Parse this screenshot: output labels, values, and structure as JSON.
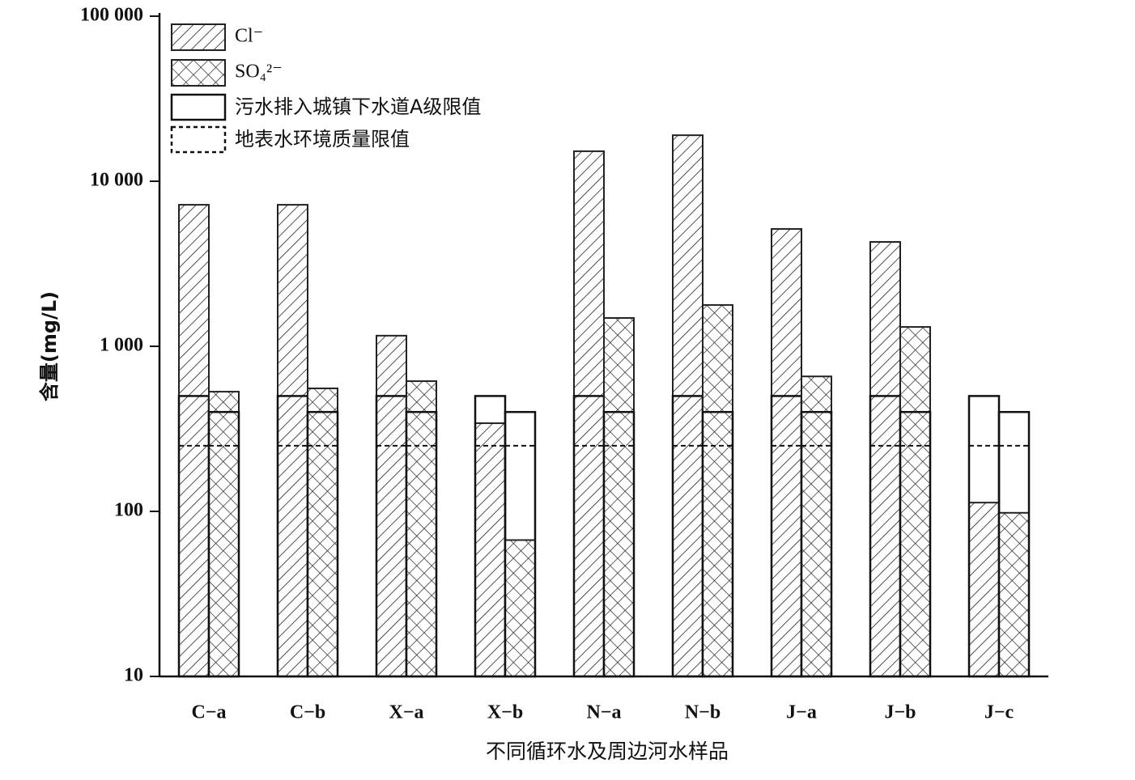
{
  "chart_data": {
    "type": "bar",
    "log_scale": true,
    "x_label": "不同循环水及周边河水样品",
    "y_label": "含量(mg/L)",
    "categories": [
      "C−a",
      "C−b",
      "X−a",
      "X−b",
      "N−a",
      "N−b",
      "J−a",
      "J−b",
      "J−c"
    ],
    "series": [
      {
        "name": "Cl⁻",
        "color": "#222222",
        "hatch": "diagonal",
        "values": [
          7200,
          7200,
          1160,
          342,
          15200,
          19000,
          5140,
          4290,
          113
        ]
      },
      {
        "name": "SO₄²⁻",
        "color": "#222222",
        "hatch": "cross",
        "values": [
          531,
          556,
          615,
          67,
          1485,
          1780,
          657,
          1310,
          98
        ]
      }
    ],
    "reference_lines": [
      {
        "name": "污水排入城镇下水道A级限值",
        "style": "solid",
        "values": [
          500,
          400
        ]
      },
      {
        "name": "地表水环境质量限值",
        "style": "dashed",
        "values": [
          250,
          250
        ]
      }
    ],
    "ylim": [
      10,
      100000
    ],
    "yticks": [
      {
        "value": 10,
        "label": "10"
      },
      {
        "value": 100,
        "label": "100"
      },
      {
        "value": 1000,
        "label": "1 000"
      },
      {
        "value": 10000,
        "label": "10 000"
      },
      {
        "value": 100000,
        "label": "100 000"
      }
    ],
    "legend": "upper-left"
  }
}
